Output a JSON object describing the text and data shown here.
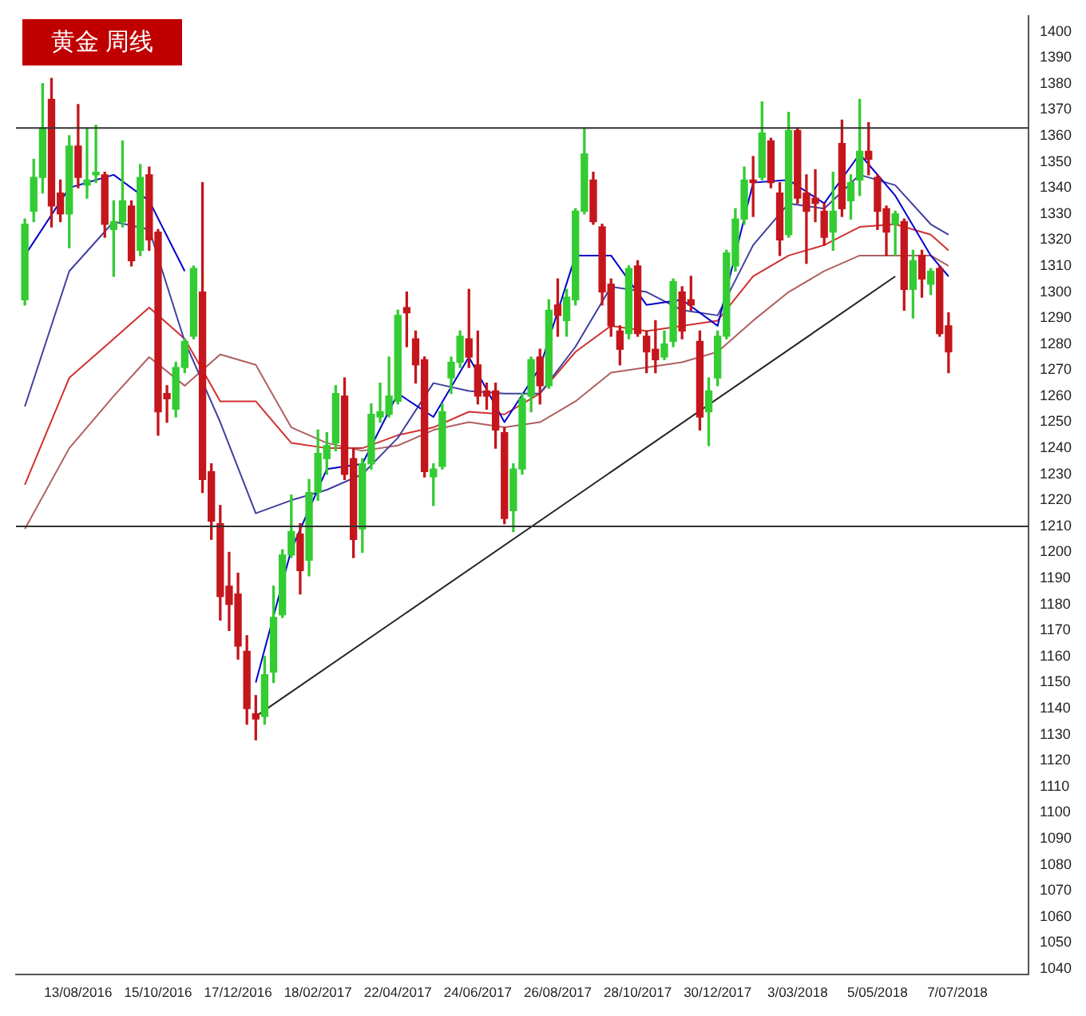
{
  "chart_data": {
    "type": "candlestick",
    "title": "黄金 周线",
    "xlim": [
      "2016-06-25",
      "2018-09-01"
    ],
    "xticks": [
      {
        "value": "2016-08-13",
        "label": "13/08/2016"
      },
      {
        "value": "2016-10-15",
        "label": "15/10/2016"
      },
      {
        "value": "2016-12-17",
        "label": "17/12/2016"
      },
      {
        "value": "2017-02-18",
        "label": "18/02/2017"
      },
      {
        "value": "2017-04-22",
        "label": "22/04/2017"
      },
      {
        "value": "2017-06-24",
        "label": "24/06/2017"
      },
      {
        "value": "2017-08-26",
        "label": "26/08/2017"
      },
      {
        "value": "2017-10-28",
        "label": "28/10/2017"
      },
      {
        "value": "2017-12-30",
        "label": "30/12/2017"
      },
      {
        "value": "2018-03-03",
        "label": "3/03/2018"
      },
      {
        "value": "2018-05-05",
        "label": "5/05/2018"
      },
      {
        "value": "2018-07-07",
        "label": "7/07/2018"
      }
    ],
    "ylim": [
      1038,
      1406
    ],
    "yticks": [
      1040,
      1050,
      1060,
      1070,
      1080,
      1090,
      1100,
      1110,
      1120,
      1130,
      1140,
      1150,
      1160,
      1170,
      1180,
      1190,
      1200,
      1210,
      1220,
      1230,
      1240,
      1250,
      1260,
      1270,
      1280,
      1290,
      1300,
      1310,
      1320,
      1330,
      1340,
      1350,
      1360,
      1370,
      1380,
      1390,
      1400
    ],
    "ref_lines": [
      {
        "axis": "y",
        "value": 1363,
        "color": "#333333"
      },
      {
        "axis": "y",
        "value": 1210,
        "color": "#333333"
      }
    ],
    "series": [
      {
        "type": "line",
        "color": "#0000cc",
        "x": [
          "2016-07-02",
          "2016-08-06",
          "2016-09-10",
          "2016-10-08",
          "2016-11-05",
          "2016-12-03",
          "2016-12-31",
          "2017-01-28",
          "2017-02-25",
          "2017-03-25",
          "2017-04-22",
          "2017-05-20",
          "2017-06-17",
          "2017-07-15",
          "2017-08-12",
          "2017-09-09",
          "2017-10-07",
          "2017-11-04",
          "2017-12-02",
          "2017-12-30",
          "2018-01-27",
          "2018-02-24",
          "2018-03-24",
          "2018-04-21",
          "2018-05-19",
          "2018-06-16",
          "2018-06-30"
        ],
        "values": [
          1314,
          1340,
          1345,
          1335,
          1308,
          null,
          1150,
          1201,
          1232,
          1234,
          1261,
          1252,
          1275,
          1250,
          1271,
          1314,
          1314,
          1295,
          1297,
          1287,
          1342,
          1343,
          1334,
          1353,
          1337,
          1314,
          1306
        ]
      },
      {
        "type": "line",
        "color": "#4040a0",
        "x": [
          "2016-07-02",
          "2016-08-06",
          "2016-09-10",
          "2016-10-08",
          "2016-11-05",
          "2016-12-03",
          "2016-12-31",
          "2017-01-28",
          "2017-02-25",
          "2017-03-25",
          "2017-04-22",
          "2017-05-20",
          "2017-06-17",
          "2017-07-15",
          "2017-08-12",
          "2017-09-09",
          "2017-10-07",
          "2017-11-04",
          "2017-12-02",
          "2017-12-30",
          "2018-01-27",
          "2018-02-24",
          "2018-03-24",
          "2018-04-21",
          "2018-05-19",
          "2018-06-16",
          "2018-06-30"
        ],
        "values": [
          1256,
          1308,
          1327,
          1324,
          1281,
          1250,
          1215,
          1220,
          1224,
          1230,
          1244,
          1265,
          1262,
          1261,
          1261,
          1279,
          1302,
          1300,
          1293,
          1291,
          1318,
          1334,
          1332,
          1345,
          1341,
          1326,
          1322
        ]
      },
      {
        "type": "line",
        "color": "#d03030",
        "x": [
          "2016-07-02",
          "2016-08-06",
          "2016-09-10",
          "2016-10-08",
          "2016-11-05",
          "2016-12-03",
          "2016-12-31",
          "2017-01-28",
          "2017-02-25",
          "2017-03-25",
          "2017-04-22",
          "2017-05-20",
          "2017-06-17",
          "2017-07-15",
          "2017-08-12",
          "2017-09-09",
          "2017-10-07",
          "2017-11-04",
          "2017-12-02",
          "2017-12-30",
          "2018-01-27",
          "2018-02-24",
          "2018-03-24",
          "2018-04-21",
          "2018-05-19",
          "2018-06-16",
          "2018-06-30"
        ],
        "values": [
          1226,
          1267,
          1282,
          1294,
          1282,
          1258,
          1258,
          1242,
          1240,
          1240,
          1245,
          1248,
          1254,
          1253,
          1261,
          1277,
          1287,
          1285,
          1287,
          1289,
          1306,
          1314,
          1318,
          1325,
          1326,
          1322,
          1316
        ]
      },
      {
        "type": "line",
        "color": "#b06060",
        "x": [
          "2016-07-02",
          "2016-08-06",
          "2016-09-10",
          "2016-10-08",
          "2016-11-05",
          "2016-12-03",
          "2016-12-31",
          "2017-01-28",
          "2017-02-25",
          "2017-03-25",
          "2017-04-22",
          "2017-05-20",
          "2017-06-17",
          "2017-07-15",
          "2017-08-12",
          "2017-09-09",
          "2017-10-07",
          "2017-11-04",
          "2017-12-02",
          "2017-12-30",
          "2018-01-27",
          "2018-02-24",
          "2018-03-24",
          "2018-04-21",
          "2018-05-19",
          "2018-06-16",
          "2018-06-30"
        ],
        "values": [
          1209,
          1240,
          1260,
          1275,
          1264,
          1276,
          1272,
          1248,
          1242,
          1239,
          1241,
          1247,
          1250,
          1248,
          1250,
          1258,
          1269,
          1271,
          1273,
          1277,
          1289,
          1300,
          1308,
          1314,
          1314,
          1314,
          1310
        ]
      },
      {
        "type": "line",
        "color": "#222222",
        "x": [
          "2016-12-31",
          "2018-05-19"
        ],
        "values": [
          1137,
          1306
        ]
      },
      {
        "type": "candlestick",
        "x": [
          "2016-07-02",
          "2016-07-09",
          "2016-07-16",
          "2016-07-23",
          "2016-07-30",
          "2016-08-06",
          "2016-08-13",
          "2016-08-20",
          "2016-08-27",
          "2016-09-03",
          "2016-09-10",
          "2016-09-17",
          "2016-09-24",
          "2016-10-01",
          "2016-10-08",
          "2016-10-15",
          "2016-10-22",
          "2016-10-29",
          "2016-11-05",
          "2016-11-12",
          "2016-11-19",
          "2016-11-26",
          "2016-12-03",
          "2016-12-10",
          "2016-12-17",
          "2016-12-24",
          "2016-12-31",
          "2017-01-07",
          "2017-01-14",
          "2017-01-21",
          "2017-01-28",
          "2017-02-04",
          "2017-02-11",
          "2017-02-18",
          "2017-02-25",
          "2017-03-04",
          "2017-03-11",
          "2017-03-18",
          "2017-03-25",
          "2017-04-01",
          "2017-04-08",
          "2017-04-15",
          "2017-04-22",
          "2017-04-29",
          "2017-05-06",
          "2017-05-13",
          "2017-05-20",
          "2017-05-27",
          "2017-06-03",
          "2017-06-10",
          "2017-06-17",
          "2017-06-24",
          "2017-07-01",
          "2017-07-08",
          "2017-07-15",
          "2017-07-22",
          "2017-07-29",
          "2017-08-05",
          "2017-08-12",
          "2017-08-19",
          "2017-08-26",
          "2017-09-02",
          "2017-09-09",
          "2017-09-16",
          "2017-09-23",
          "2017-09-30",
          "2017-10-07",
          "2017-10-14",
          "2017-10-21",
          "2017-10-28",
          "2017-11-04",
          "2017-11-11",
          "2017-11-18",
          "2017-11-25",
          "2017-12-02",
          "2017-12-09",
          "2017-12-16",
          "2017-12-23",
          "2017-12-30",
          "2018-01-06",
          "2018-01-13",
          "2018-01-20",
          "2018-01-27",
          "2018-02-03",
          "2018-02-10",
          "2018-02-17",
          "2018-02-24",
          "2018-03-03",
          "2018-03-10",
          "2018-03-17",
          "2018-03-24",
          "2018-03-31",
          "2018-04-07",
          "2018-04-14",
          "2018-04-21",
          "2018-04-28",
          "2018-05-05",
          "2018-05-12",
          "2018-05-19",
          "2018-05-26",
          "2018-06-02",
          "2018-06-09",
          "2018-06-16",
          "2018-06-23",
          "2018-06-30"
        ],
        "ohlc": [
          [
            1297,
            1328,
            1295,
            1326
          ],
          [
            1331,
            1351,
            1327,
            1344
          ],
          [
            1344,
            1380,
            1338,
            1363
          ],
          [
            1374,
            1382,
            1325,
            1333
          ],
          [
            1338,
            1343,
            1327,
            1330
          ],
          [
            1330,
            1360,
            1317,
            1356
          ],
          [
            1356,
            1372,
            1340,
            1344
          ],
          [
            1341,
            1363,
            1336,
            1343
          ],
          [
            1345,
            1364,
            1342,
            1346
          ],
          [
            1345,
            1346,
            1321,
            1326
          ],
          [
            1324,
            1335,
            1306,
            1327
          ],
          [
            1327,
            1358,
            1325,
            1335
          ],
          [
            1333,
            1335,
            1310,
            1312
          ],
          [
            1316,
            1349,
            1314,
            1344
          ],
          [
            1345,
            1348,
            1316,
            1320
          ],
          [
            1323,
            1324,
            1245,
            1254
          ],
          [
            1261,
            1264,
            1250,
            1259
          ],
          [
            1255,
            1273,
            1252,
            1271
          ],
          [
            1271,
            1282,
            1269,
            1281
          ],
          [
            1283,
            1310,
            1282,
            1309
          ],
          [
            1300,
            1342,
            1223,
            1228
          ],
          [
            1231,
            1234,
            1205,
            1212
          ],
          [
            1211,
            1218,
            1174,
            1183
          ],
          [
            1187,
            1200,
            1170,
            1180
          ],
          [
            1184,
            1192,
            1159,
            1164
          ],
          [
            1162,
            1168,
            1134,
            1140
          ],
          [
            1138,
            1145,
            1128,
            1136
          ],
          [
            1137,
            1160,
            1134,
            1153
          ],
          [
            1154,
            1187,
            1150,
            1175
          ],
          [
            1176,
            1201,
            1175,
            1199
          ],
          [
            1199,
            1222,
            1198,
            1208
          ],
          [
            1207,
            1211,
            1184,
            1193
          ],
          [
            1197,
            1228,
            1191,
            1223
          ],
          [
            1223,
            1247,
            1220,
            1238
          ],
          [
            1236,
            1246,
            1230,
            1241
          ],
          [
            1242,
            1264,
            1239,
            1261
          ],
          [
            1260,
            1267,
            1228,
            1230
          ],
          [
            1236,
            1240,
            1198,
            1205
          ],
          [
            1209,
            1236,
            1200,
            1234
          ],
          [
            1234,
            1257,
            1232,
            1253
          ],
          [
            1252,
            1265,
            1250,
            1254
          ],
          [
            1253,
            1275,
            1252,
            1260
          ],
          [
            1258,
            1293,
            1257,
            1291
          ],
          [
            1294,
            1300,
            1279,
            1292
          ],
          [
            1282,
            1285,
            1265,
            1272
          ],
          [
            1274,
            1275,
            1229,
            1231
          ],
          [
            1229,
            1234,
            1218,
            1232
          ],
          [
            1233,
            1257,
            1232,
            1254
          ],
          [
            1267,
            1275,
            1261,
            1273
          ],
          [
            1273,
            1285,
            1271,
            1283
          ],
          [
            1282,
            1301,
            1271,
            1275
          ],
          [
            1272,
            1285,
            1257,
            1260
          ],
          [
            1262,
            1265,
            1255,
            1260
          ],
          [
            1262,
            1265,
            1240,
            1247
          ],
          [
            1246,
            1248,
            1211,
            1213
          ],
          [
            1216,
            1234,
            1208,
            1232
          ],
          [
            1232,
            1261,
            1230,
            1259
          ],
          [
            1260,
            1275,
            1254,
            1274
          ],
          [
            1275,
            1278,
            1257,
            1264
          ],
          [
            1264,
            1297,
            1263,
            1293
          ],
          [
            1295,
            1305,
            1283,
            1291
          ],
          [
            1289,
            1301,
            1283,
            1298
          ],
          [
            1297,
            1332,
            1295,
            1331
          ],
          [
            1331,
            1363,
            1330,
            1353
          ],
          [
            1343,
            1346,
            1326,
            1327
          ],
          [
            1325,
            1326,
            1295,
            1300
          ],
          [
            1303,
            1305,
            1283,
            1287
          ],
          [
            1285,
            1287,
            1272,
            1278
          ],
          [
            1284,
            1310,
            1282,
            1309
          ],
          [
            1310,
            1312,
            1283,
            1284
          ],
          [
            1283,
            1285,
            1269,
            1277
          ],
          [
            1278,
            1289,
            1269,
            1274
          ],
          [
            1275,
            1285,
            1274,
            1280
          ],
          [
            1281,
            1305,
            1279,
            1304
          ],
          [
            1300,
            1302,
            1282,
            1285
          ],
          [
            1297,
            1306,
            1293,
            1295
          ],
          [
            1281,
            1285,
            1247,
            1252
          ],
          [
            1254,
            1267,
            1241,
            1262
          ],
          [
            1267,
            1285,
            1264,
            1283
          ],
          [
            1283,
            1316,
            1282,
            1315
          ],
          [
            1310,
            1332,
            1308,
            1328
          ],
          [
            1328,
            1348,
            1326,
            1343
          ],
          [
            1343,
            1352,
            1329,
            1342
          ],
          [
            1344,
            1373,
            1343,
            1361
          ],
          [
            1358,
            1359,
            1340,
            1342
          ],
          [
            1338,
            1342,
            1314,
            1320
          ],
          [
            1322,
            1369,
            1321,
            1362
          ],
          [
            1362,
            1363,
            1334,
            1336
          ],
          [
            1338,
            1345,
            1311,
            1331
          ],
          [
            1336,
            1347,
            1327,
            1334
          ],
          [
            1331,
            1334,
            1318,
            1321
          ],
          [
            1323,
            1346,
            1316,
            1331
          ],
          [
            1357,
            1366,
            1329,
            1332
          ],
          [
            1335,
            1345,
            1328,
            1342
          ],
          [
            1343,
            1374,
            1337,
            1354
          ],
          [
            1354,
            1365,
            1345,
            1351
          ],
          [
            1344,
            1345,
            1324,
            1331
          ],
          [
            1332,
            1333,
            1314,
            1323
          ],
          [
            1326,
            1331,
            1314,
            1330
          ],
          [
            1327,
            1328,
            1293,
            1301
          ],
          [
            1301,
            1316,
            1290,
            1312
          ],
          [
            1314,
            1316,
            1298,
            1305
          ],
          [
            1303,
            1309,
            1299,
            1308
          ],
          [
            1309,
            1310,
            1283,
            1284
          ],
          [
            1287,
            1292,
            1269,
            1277
          ]
        ],
        "colors": [
          "#33cc33",
          "#33cc33",
          "#33cc33",
          "#c4161c",
          "#c4161c",
          "#33cc33",
          "#c4161c",
          "#33cc33",
          "#33cc33",
          "#c4161c",
          "#33cc33",
          "#33cc33",
          "#c4161c",
          "#33cc33",
          "#c4161c",
          "#c4161c",
          "#c4161c",
          "#33cc33",
          "#33cc33",
          "#33cc33",
          "#c4161c",
          "#c4161c",
          "#c4161c",
          "#c4161c",
          "#c4161c",
          "#c4161c",
          "#c4161c",
          "#33cc33",
          "#33cc33",
          "#33cc33",
          "#33cc33",
          "#c4161c",
          "#33cc33",
          "#33cc33",
          "#33cc33",
          "#33cc33",
          "#c4161c",
          "#c4161c",
          "#33cc33",
          "#33cc33",
          "#33cc33",
          "#33cc33",
          "#33cc33",
          "#c4161c",
          "#c4161c",
          "#c4161c",
          "#33cc33",
          "#33cc33",
          "#33cc33",
          "#33cc33",
          "#c4161c",
          "#c4161c",
          "#c4161c",
          "#c4161c",
          "#c4161c",
          "#33cc33",
          "#33cc33",
          "#33cc33",
          "#c4161c",
          "#33cc33",
          "#c4161c",
          "#33cc33",
          "#33cc33",
          "#33cc33",
          "#c4161c",
          "#c4161c",
          "#c4161c",
          "#c4161c",
          "#33cc33",
          "#c4161c",
          "#c4161c",
          "#c4161c",
          "#33cc33",
          "#33cc33",
          "#c4161c",
          "#c4161c",
          "#c4161c",
          "#33cc33",
          "#33cc33",
          "#33cc33",
          "#33cc33",
          "#33cc33",
          "#c4161c",
          "#33cc33",
          "#c4161c",
          "#c4161c",
          "#33cc33",
          "#c4161c",
          "#c4161c",
          "#c4161c",
          "#c4161c",
          "#33cc33",
          "#c4161c",
          "#33cc33",
          "#33cc33",
          "#c4161c",
          "#c4161c",
          "#c4161c",
          "#33cc33",
          "#c4161c",
          "#33cc33",
          "#c4161c",
          "#33cc33",
          "#c4161c",
          "#c4161c"
        ]
      }
    ]
  }
}
